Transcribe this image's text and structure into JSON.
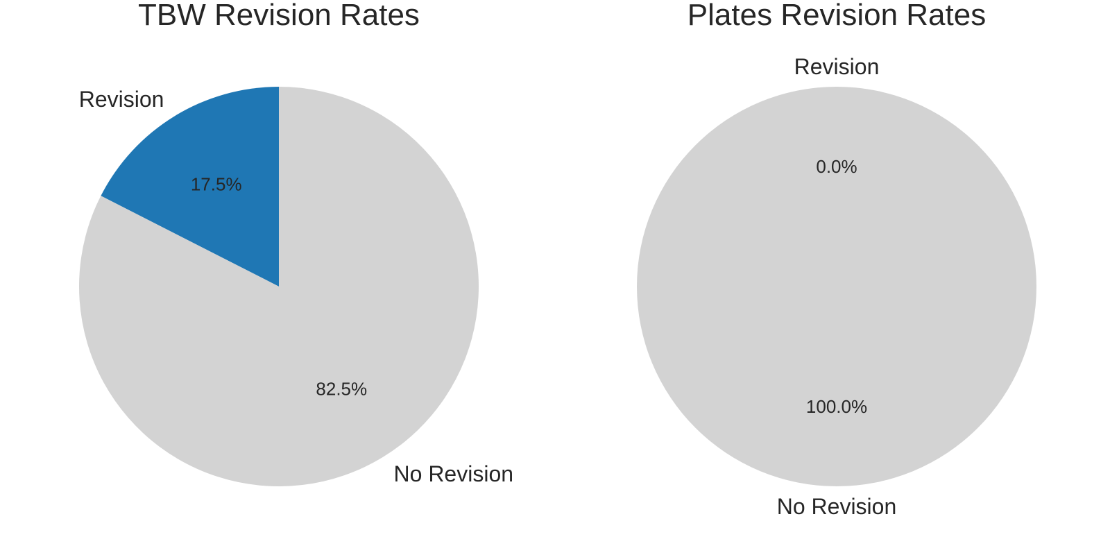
{
  "chart_data": [
    {
      "type": "pie",
      "title": "TBW Revision Rates",
      "labels": [
        "Revision",
        "No Revision"
      ],
      "values": [
        17.5,
        82.5
      ],
      "percent_labels": [
        "17.5%",
        "82.5%"
      ],
      "colors": [
        "#1f77b4",
        "#d3d3d3"
      ],
      "start_angle_deg": 90,
      "direction": "counterclockwise"
    },
    {
      "type": "pie",
      "title": "Plates Revision Rates",
      "labels": [
        "Revision",
        "No Revision"
      ],
      "values": [
        0.0,
        100.0
      ],
      "percent_labels": [
        "0.0%",
        "100.0%"
      ],
      "colors": [
        "#1f77b4",
        "#d3d3d3"
      ],
      "start_angle_deg": 90,
      "direction": "counterclockwise"
    }
  ]
}
